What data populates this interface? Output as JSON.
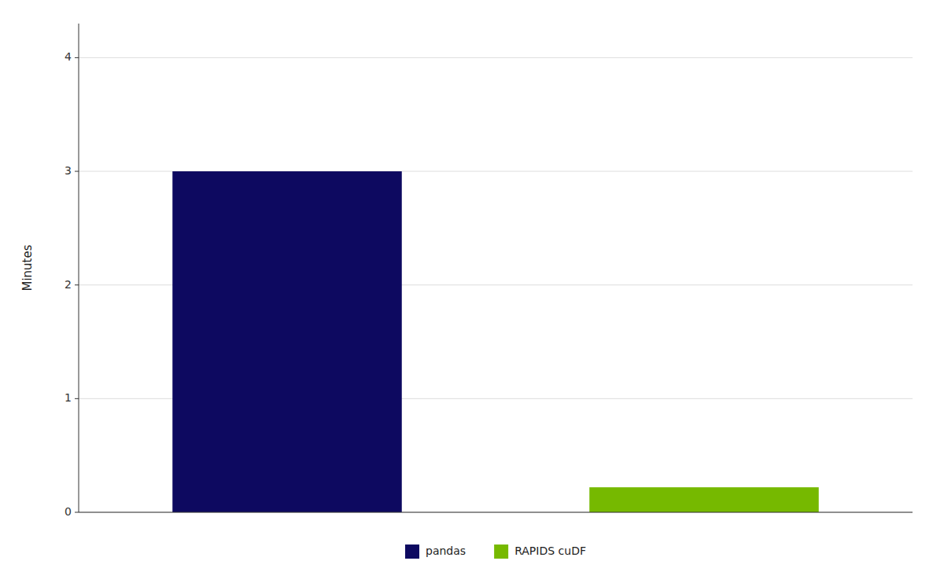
{
  "chart_data": {
    "type": "bar",
    "categories": [
      "pandas",
      "RAPIDS cuDF"
    ],
    "values": [
      3.0,
      0.22
    ],
    "colors": [
      "#0d0960",
      "#76b900"
    ],
    "ylabel": "Minutes",
    "ylim": [
      0,
      4.3
    ],
    "yticks": [
      0,
      1,
      2,
      3,
      4
    ],
    "grid": true,
    "legend": "bottom",
    "tick_labels": "y"
  }
}
